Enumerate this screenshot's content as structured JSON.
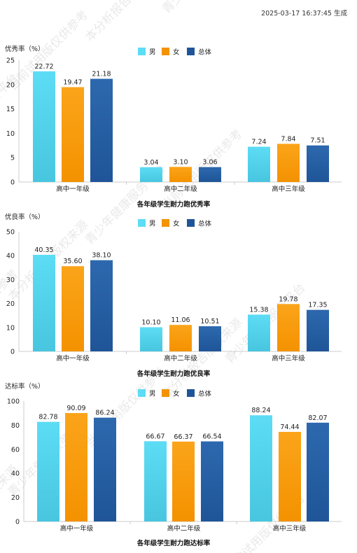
{
  "timestamp": "2025-03-17 16:37:45 生成",
  "watermark": {
    "lines": [
      "青少年健康服务平台",
      "当前试用版仅供参考",
      "本分析报告版权来源"
    ],
    "color": "#e9e9e9"
  },
  "colors": {
    "male_top": "#5ddcf5",
    "male_bottom": "#48c6e0",
    "female_top": "#fba41a",
    "female_bottom": "#f49200",
    "total_top": "#2d68ae",
    "total_bottom": "#1f5598",
    "axis": "#cccccc"
  },
  "chart_data": [
    {
      "type": "bar",
      "title": "各年级学生耐力跑优秀率",
      "ylabel": "优秀率（%）",
      "ylim": [
        0,
        25
      ],
      "yticks": [
        0,
        5,
        10,
        15,
        20,
        25
      ],
      "categories": [
        "高中一年级",
        "高中二年级",
        "高中三年级"
      ],
      "legend": [
        "男",
        "女",
        "总体"
      ],
      "series": [
        {
          "name": "男",
          "values": [
            22.72,
            3.04,
            7.24
          ]
        },
        {
          "name": "女",
          "values": [
            19.47,
            3.1,
            7.84
          ]
        },
        {
          "name": "总体",
          "values": [
            21.18,
            3.06,
            7.51
          ]
        }
      ]
    },
    {
      "type": "bar",
      "title": "各年级学生耐力跑优良率",
      "ylabel": "优良率（%）",
      "ylim": [
        0,
        50
      ],
      "yticks": [
        0,
        10,
        20,
        30,
        40,
        50
      ],
      "categories": [
        "高中一年级",
        "高中二年级",
        "高中三年级"
      ],
      "legend": [
        "男",
        "女",
        "总体"
      ],
      "series": [
        {
          "name": "男",
          "values": [
            40.35,
            10.1,
            15.38
          ]
        },
        {
          "name": "女",
          "values": [
            35.6,
            11.06,
            19.78
          ]
        },
        {
          "name": "总体",
          "values": [
            38.1,
            10.51,
            17.35
          ]
        }
      ]
    },
    {
      "type": "bar",
      "title": "各年级学生耐力跑达标率",
      "ylabel": "达标率（%）",
      "ylim": [
        0,
        100
      ],
      "yticks": [
        0,
        20,
        40,
        60,
        80,
        100
      ],
      "categories": [
        "高中一年级",
        "高中二年级",
        "高中三年级"
      ],
      "legend": [
        "男",
        "女",
        "总体"
      ],
      "series": [
        {
          "name": "男",
          "values": [
            82.78,
            66.67,
            88.24
          ]
        },
        {
          "name": "女",
          "values": [
            90.09,
            66.37,
            74.44
          ]
        },
        {
          "name": "总体",
          "values": [
            86.24,
            66.54,
            82.07
          ]
        }
      ]
    }
  ]
}
